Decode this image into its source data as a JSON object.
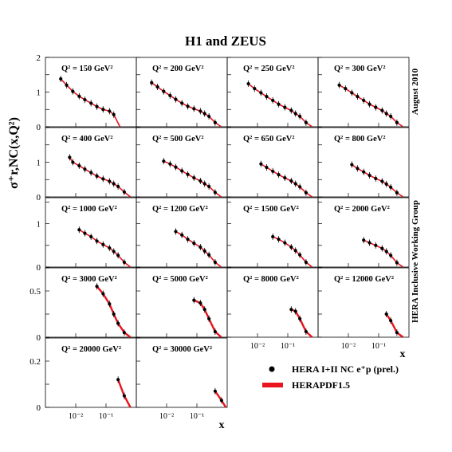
{
  "figure": {
    "title": "H1 and ZEUS",
    "ylabel": "σ⁺r,NC(x,Q²)",
    "xlabel": "x",
    "right_top": "August 2010",
    "right_mid": "HERA Inclusive Working Group",
    "legend": [
      {
        "label": "HERA I+II NC e⁺p (prel.)",
        "marker": "dot",
        "color": "#000000"
      },
      {
        "label": "HERAPDF1.5",
        "marker": "band",
        "color": "#e8141e"
      }
    ],
    "x_ticks": [
      "10⁻²",
      "10⁻¹"
    ]
  },
  "chart_data": [
    {
      "type": "scatter",
      "title": "Q² = 150 GeV²",
      "ylim": [
        0,
        2
      ],
      "yticks": [
        "0",
        "1",
        "2"
      ],
      "xlog": true,
      "xlim": [
        0.001,
        1
      ],
      "series": [
        {
          "name": "HERA I+II NC e⁺p (prel.)",
          "x": [
            0.0032,
            0.005,
            0.008,
            0.013,
            0.02,
            0.032,
            0.05,
            0.08,
            0.13,
            0.18
          ],
          "y": [
            1.38,
            1.2,
            1.02,
            0.88,
            0.78,
            0.68,
            0.58,
            0.5,
            0.45,
            0.35
          ]
        }
      ]
    },
    {
      "type": "scatter",
      "title": "Q² = 200 GeV²",
      "ylim": [
        0,
        2
      ],
      "xlog": true,
      "xlim": [
        0.001,
        1
      ],
      "series": [
        {
          "name": "HERA I+II NC e⁺p (prel.)",
          "x": [
            0.0032,
            0.005,
            0.008,
            0.013,
            0.02,
            0.032,
            0.05,
            0.08,
            0.13,
            0.18,
            0.25,
            0.4
          ],
          "y": [
            1.27,
            1.15,
            1.02,
            0.9,
            0.79,
            0.68,
            0.59,
            0.52,
            0.45,
            0.38,
            0.3,
            0.12
          ]
        }
      ]
    },
    {
      "type": "scatter",
      "title": "Q² = 250 GeV²",
      "ylim": [
        0,
        2
      ],
      "xlog": true,
      "xlim": [
        0.001,
        1
      ],
      "series": [
        {
          "name": "HERA I+II NC e⁺p (prel.)",
          "x": [
            0.005,
            0.008,
            0.013,
            0.02,
            0.032,
            0.05,
            0.08,
            0.13,
            0.18,
            0.25,
            0.4
          ],
          "y": [
            1.24,
            1.1,
            0.98,
            0.87,
            0.76,
            0.65,
            0.56,
            0.47,
            0.38,
            0.3,
            0.12
          ]
        }
      ]
    },
    {
      "type": "scatter",
      "title": "Q² = 300 GeV²",
      "ylim": [
        0,
        2
      ],
      "xlog": true,
      "xlim": [
        0.001,
        1
      ],
      "series": [
        {
          "name": "HERA I+II NC e⁺p (prel.)",
          "x": [
            0.005,
            0.008,
            0.013,
            0.02,
            0.032,
            0.05,
            0.08,
            0.13,
            0.18,
            0.25,
            0.4
          ],
          "y": [
            1.2,
            1.1,
            0.98,
            0.87,
            0.76,
            0.65,
            0.56,
            0.47,
            0.38,
            0.3,
            0.12
          ]
        }
      ]
    },
    {
      "type": "scatter",
      "title": "Q² = 400 GeV²",
      "ylim": [
        0,
        2
      ],
      "yticks": [
        "0",
        "1",
        ""
      ],
      "xlog": true,
      "xlim": [
        0.001,
        1
      ],
      "series": [
        {
          "name": "HERA I+II NC e⁺p (prel.)",
          "x": [
            0.0063,
            0.008,
            0.013,
            0.02,
            0.032,
            0.05,
            0.08,
            0.13,
            0.18,
            0.25,
            0.4
          ],
          "y": [
            1.14,
            1.0,
            0.9,
            0.8,
            0.7,
            0.6,
            0.52,
            0.45,
            0.38,
            0.3,
            0.14
          ]
        }
      ]
    },
    {
      "type": "scatter",
      "title": "Q² = 500 GeV²",
      "ylim": [
        0,
        2
      ],
      "xlog": true,
      "xlim": [
        0.001,
        1
      ],
      "series": [
        {
          "name": "HERA I+II NC e⁺p (prel.)",
          "x": [
            0.008,
            0.013,
            0.02,
            0.032,
            0.05,
            0.08,
            0.13,
            0.18,
            0.25,
            0.4
          ],
          "y": [
            1.03,
            0.95,
            0.86,
            0.75,
            0.65,
            0.55,
            0.46,
            0.38,
            0.3,
            0.13
          ]
        }
      ]
    },
    {
      "type": "scatter",
      "title": "Q² = 650 GeV²",
      "ylim": [
        0,
        2
      ],
      "xlog": true,
      "xlim": [
        0.001,
        1
      ],
      "series": [
        {
          "name": "HERA I+II NC e⁺p (prel.)",
          "x": [
            0.013,
            0.02,
            0.032,
            0.05,
            0.08,
            0.13,
            0.18,
            0.25,
            0.4
          ],
          "y": [
            0.95,
            0.85,
            0.74,
            0.64,
            0.55,
            0.46,
            0.38,
            0.29,
            0.12
          ]
        }
      ]
    },
    {
      "type": "scatter",
      "title": "Q² = 800 GeV²",
      "ylim": [
        0,
        2
      ],
      "xlog": true,
      "xlim": [
        0.001,
        1
      ],
      "series": [
        {
          "name": "HERA I+II NC e⁺p (prel.)",
          "x": [
            0.013,
            0.02,
            0.032,
            0.05,
            0.08,
            0.13,
            0.18,
            0.25,
            0.4
          ],
          "y": [
            0.93,
            0.82,
            0.72,
            0.62,
            0.53,
            0.45,
            0.37,
            0.28,
            0.12
          ]
        }
      ]
    },
    {
      "type": "scatter",
      "title": "Q² = 1000 GeV²",
      "ylim": [
        0,
        1.6
      ],
      "yticks": [
        "0",
        "1",
        ""
      ],
      "xlog": true,
      "xlim": [
        0.001,
        1
      ],
      "series": [
        {
          "name": "HERA I+II NC e⁺p (prel.)",
          "x": [
            0.013,
            0.02,
            0.032,
            0.05,
            0.08,
            0.13,
            0.18,
            0.25,
            0.4
          ],
          "y": [
            0.86,
            0.78,
            0.7,
            0.6,
            0.52,
            0.44,
            0.36,
            0.27,
            0.11
          ]
        }
      ]
    },
    {
      "type": "scatter",
      "title": "Q² = 1200 GeV²",
      "ylim": [
        0,
        1.6
      ],
      "xlog": true,
      "xlim": [
        0.001,
        1
      ],
      "series": [
        {
          "name": "HERA I+II NC e⁺p (prel.)",
          "x": [
            0.02,
            0.032,
            0.05,
            0.08,
            0.13,
            0.18,
            0.25,
            0.4
          ],
          "y": [
            0.82,
            0.74,
            0.64,
            0.55,
            0.46,
            0.37,
            0.28,
            0.11
          ]
        }
      ]
    },
    {
      "type": "scatter",
      "title": "Q² = 1500 GeV²",
      "ylim": [
        0,
        1.6
      ],
      "xlog": true,
      "xlim": [
        0.001,
        1
      ],
      "series": [
        {
          "name": "HERA I+II NC e⁺p (prel.)",
          "x": [
            0.032,
            0.05,
            0.08,
            0.13,
            0.18,
            0.25,
            0.4
          ],
          "y": [
            0.7,
            0.64,
            0.56,
            0.46,
            0.38,
            0.28,
            0.11
          ]
        }
      ]
    },
    {
      "type": "scatter",
      "title": "Q² = 2000 GeV²",
      "ylim": [
        0,
        1.6
      ],
      "xlog": true,
      "xlim": [
        0.001,
        1
      ],
      "series": [
        {
          "name": "HERA I+II NC e⁺p (prel.)",
          "x": [
            0.032,
            0.05,
            0.08,
            0.13,
            0.18,
            0.25,
            0.4
          ],
          "y": [
            0.62,
            0.56,
            0.5,
            0.43,
            0.36,
            0.27,
            0.1
          ]
        }
      ]
    },
    {
      "type": "scatter",
      "title": "Q² = 3000 GeV²",
      "ylim": [
        0,
        0.75
      ],
      "yticks": [
        "0",
        "0.5",
        ""
      ],
      "xlog": true,
      "xlim": [
        0.001,
        1
      ],
      "series": [
        {
          "name": "HERA I+II NC e⁺p (prel.)",
          "x": [
            0.05,
            0.08,
            0.13,
            0.18,
            0.25,
            0.4
          ],
          "y": [
            0.55,
            0.47,
            0.36,
            0.25,
            0.15,
            0.05
          ]
        }
      ]
    },
    {
      "type": "scatter",
      "title": "Q² = 5000 GeV²",
      "ylim": [
        0,
        0.75
      ],
      "xlog": true,
      "xlim": [
        0.001,
        1
      ],
      "series": [
        {
          "name": "HERA I+II NC e⁺p (prel.)",
          "x": [
            0.08,
            0.13,
            0.18,
            0.25,
            0.4
          ],
          "y": [
            0.4,
            0.37,
            0.3,
            0.2,
            0.06
          ]
        }
      ]
    },
    {
      "type": "scatter",
      "title": "Q² = 8000 GeV²",
      "ylim": [
        0,
        0.75
      ],
      "xlog": true,
      "xlim": [
        0.001,
        1
      ],
      "series": [
        {
          "name": "HERA I+II NC e⁺p (prel.)",
          "x": [
            0.13,
            0.18,
            0.25,
            0.4
          ],
          "y": [
            0.3,
            0.28,
            0.2,
            0.06
          ]
        }
      ]
    },
    {
      "type": "scatter",
      "title": "Q² = 12000 GeV²",
      "ylim": [
        0,
        0.75
      ],
      "xlog": true,
      "xlim": [
        0.001,
        1
      ],
      "series": [
        {
          "name": "HERA I+II NC e⁺p (prel.)",
          "x": [
            0.18,
            0.25,
            0.4
          ],
          "y": [
            0.25,
            0.18,
            0.05
          ]
        }
      ]
    },
    {
      "type": "scatter",
      "title": "Q² = 20000 GeV²",
      "ylim": [
        0,
        0.3
      ],
      "yticks": [
        "0",
        "0.2",
        ""
      ],
      "xlog": true,
      "xlim": [
        0.001,
        1
      ],
      "series": [
        {
          "name": "HERA I+II NC e⁺p (prel.)",
          "x": [
            0.25,
            0.4
          ],
          "y": [
            0.12,
            0.05
          ]
        }
      ]
    },
    {
      "type": "scatter",
      "title": "Q² = 30000 GeV²",
      "ylim": [
        0,
        0.3
      ],
      "xlog": true,
      "xlim": [
        0.001,
        1
      ],
      "series": [
        {
          "name": "HERA I+II NC e⁺p (prel.)",
          "x": [
            0.4,
            0.65
          ],
          "y": [
            0.07,
            0.03
          ]
        }
      ]
    }
  ]
}
